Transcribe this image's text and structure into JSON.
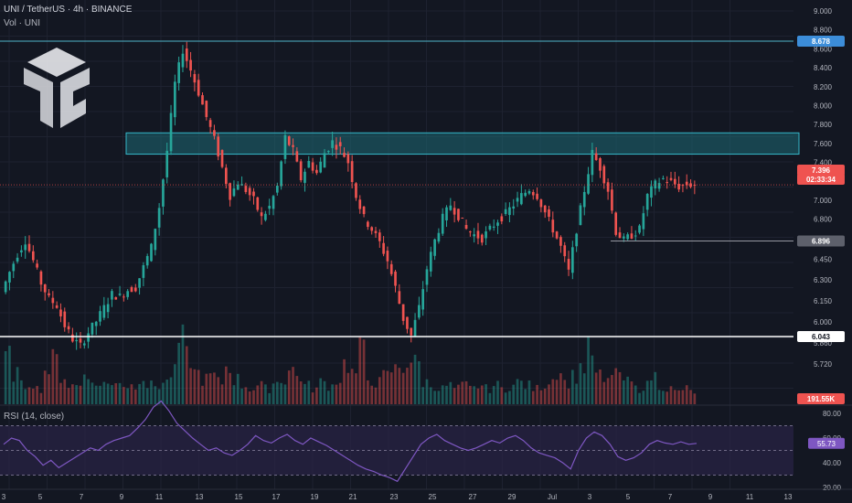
{
  "header": {
    "symbol_line": "UNI / TetherUS · 4h · BINANCE",
    "volume_line": "Vol · UNI",
    "rsi_line": "RSI (14, close)"
  },
  "colors": {
    "background": "#131722",
    "up": "#26a69a",
    "down": "#ef5350",
    "zone_fill": "#1d6a74",
    "zone_border": "#35b7c9",
    "resistance_line": "#4fb3c8",
    "support_line": "#ffffff",
    "rsi_line": "#7e57c2",
    "rsi_band": "#2a2446"
  },
  "chart_data": [
    {
      "type": "candlestick",
      "title": "UNI / TetherUS · 4h · BINANCE",
      "y_ticks": [
        "9.000",
        "8.800",
        "8.600",
        "8.400",
        "8.200",
        "8.000",
        "7.800",
        "7.600",
        "7.400",
        "7.200",
        "7.000",
        "6.800",
        "6.600",
        "6.450",
        "6.300",
        "6.150",
        "6.000",
        "5.860",
        "5.720"
      ],
      "x_ticks": [
        "3",
        "5",
        "7",
        "9",
        "11",
        "13",
        "15",
        "17",
        "19",
        "21",
        "23",
        "25",
        "27",
        "29",
        "Jul",
        "3",
        "5",
        "7",
        "9",
        "11",
        "13"
      ],
      "price_labels": [
        {
          "value": "8.678",
          "color": "#3c8dd9"
        },
        {
          "value": "7.396",
          "color": "#ef5350"
        },
        {
          "value": "02:33:34",
          "color": "#ef5350"
        },
        {
          "value": "6.896",
          "color": "#5d606b"
        },
        {
          "value": "6.043",
          "color": "#ffffff"
        },
        {
          "value": "191.55K",
          "color": "#ef5350"
        }
      ],
      "levels": {
        "resistance": 8.678,
        "last_price": 7.396,
        "minor_support": 6.896,
        "major_support": 6.043
      },
      "zone": {
        "low": 7.67,
        "high": 7.86
      },
      "series": [
        {
          "name": "UNI / TetherUS",
          "close_path": [
            6.44,
            6.62,
            6.78,
            6.9,
            6.72,
            6.52,
            6.38,
            6.32,
            6.14,
            6.02,
            5.96,
            6.08,
            6.18,
            6.3,
            6.42,
            6.4,
            6.46,
            6.48,
            6.66,
            6.84,
            7.2,
            7.7,
            8.3,
            8.6,
            8.42,
            8.22,
            8.0,
            7.8,
            7.55,
            7.3,
            7.42,
            7.35,
            7.26,
            7.1,
            7.2,
            7.38,
            7.82,
            7.7,
            7.45,
            7.6,
            7.5,
            7.68,
            7.78,
            7.72,
            7.6,
            7.3,
            7.1,
            7.0,
            6.88,
            6.72,
            6.48,
            6.2,
            6.05,
            6.3,
            6.65,
            6.9,
            7.1,
            7.22,
            7.12,
            7.0,
            6.95,
            6.92,
            7.0,
            7.08,
            7.14,
            7.22,
            7.3,
            7.36,
            7.3,
            7.15,
            7.0,
            6.84,
            6.62,
            7.0,
            7.35,
            7.68,
            7.55,
            7.35,
            6.98,
            6.9,
            6.95,
            7.0,
            7.3,
            7.4,
            7.45,
            7.42,
            7.38,
            7.4,
            7.396
          ]
        }
      ],
      "volume": [
        0.75,
        0.5,
        0.3,
        0.35,
        0.25,
        0.55,
        0.7,
        0.45,
        0.3,
        0.3,
        0.55,
        0.3,
        0.35,
        0.3,
        0.4,
        0.3,
        0.3,
        0.45,
        0.3,
        0.3,
        0.35,
        0.5,
        1.0,
        0.75,
        0.5,
        0.4,
        0.45,
        0.35,
        0.6,
        0.4,
        0.3,
        0.25,
        0.3,
        0.25,
        0.35,
        0.4,
        0.55,
        0.45,
        0.3,
        0.25,
        0.35,
        0.3,
        0.4,
        0.65,
        0.5,
        0.85,
        0.4,
        0.35,
        0.45,
        0.55,
        0.6,
        0.7,
        0.65,
        0.35,
        0.3,
        0.25,
        0.3,
        0.25,
        0.3,
        0.25,
        0.3,
        0.25,
        0.3,
        0.25,
        0.3,
        0.35,
        0.3,
        0.25,
        0.3,
        0.4,
        0.55,
        0.35,
        0.45,
        0.6,
        0.85,
        0.45,
        0.35,
        0.55,
        0.4,
        0.35,
        0.25,
        0.3,
        0.45,
        0.3,
        0.25,
        0.2,
        0.25,
        0.2,
        0.15
      ]
    },
    {
      "type": "line",
      "title": "RSI (14, close)",
      "y_ticks": [
        "80.00",
        "60.00",
        "40.00",
        "20.00"
      ],
      "ylim": [
        20,
        80
      ],
      "bands": [
        70,
        50,
        30
      ],
      "current_value": "55.73",
      "series": [
        {
          "name": "RSI",
          "values": [
            55,
            60,
            58,
            50,
            45,
            38,
            42,
            36,
            40,
            44,
            48,
            52,
            50,
            55,
            58,
            60,
            62,
            68,
            75,
            85,
            90,
            82,
            72,
            66,
            60,
            55,
            50,
            52,
            48,
            46,
            50,
            55,
            62,
            58,
            56,
            60,
            63,
            58,
            55,
            60,
            57,
            54,
            50,
            46,
            42,
            38,
            35,
            33,
            30,
            28,
            25,
            35,
            45,
            55,
            60,
            63,
            58,
            55,
            52,
            50,
            52,
            55,
            58,
            56,
            60,
            62,
            58,
            52,
            48,
            46,
            44,
            40,
            35,
            50,
            60,
            65,
            62,
            55,
            45,
            42,
            44,
            48,
            55,
            58,
            56,
            55,
            57,
            55,
            55.73
          ]
        }
      ]
    }
  ]
}
